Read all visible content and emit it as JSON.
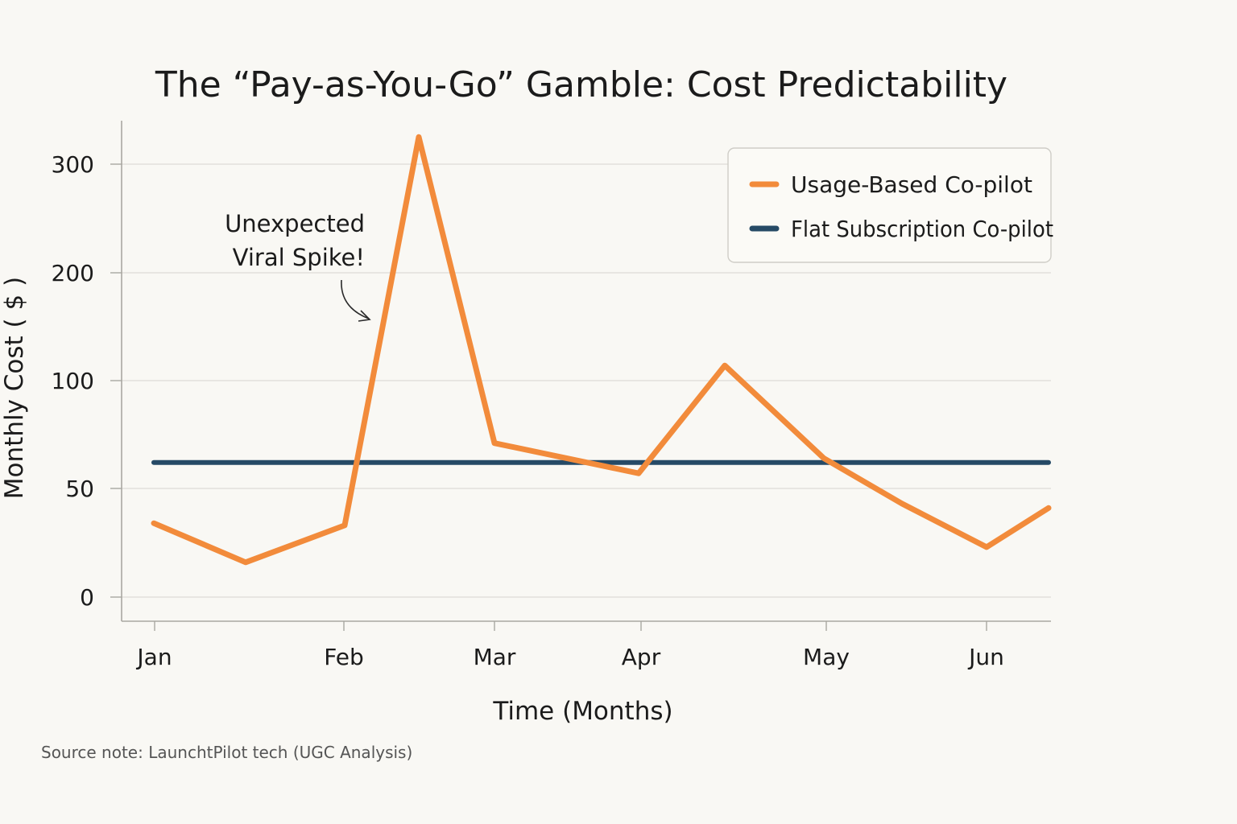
{
  "chart_data": {
    "type": "line",
    "title": "The “Pay-as-You-Go” Gamble: Cost Predictability",
    "xlabel": "Time (Months)",
    "ylabel": "Monthly Cost ( $ )",
    "x_tick_labels": [
      "Jan",
      "Feb",
      "Mar",
      "Apr",
      "May",
      "Jun"
    ],
    "y_ticks": [
      0,
      50,
      100,
      200,
      300
    ],
    "y_tick_labels": [
      "0",
      "50",
      "100",
      "200",
      "300"
    ],
    "grid": true,
    "legend_position": "top-right",
    "series": [
      {
        "name": "Usage-Based Co-pilot",
        "color": "#f28b3b",
        "x": [
          0,
          0.5,
          1,
          1.5,
          2,
          2.5,
          3,
          3.5,
          4,
          4.5,
          5
        ],
        "y": [
          34,
          16,
          33,
          325,
          71,
          57,
          114,
          64,
          43,
          23,
          41
        ]
      },
      {
        "name": "Flat Subscription Co-pilot",
        "color": "#264a66",
        "x": [
          0,
          5
        ],
        "y": [
          62,
          62
        ]
      }
    ],
    "annotation": {
      "line1": "Unexpected",
      "line2": "Viral Spike!"
    }
  },
  "source_note": "Source note: LaunchtPilot tech (UGC Analysis)"
}
